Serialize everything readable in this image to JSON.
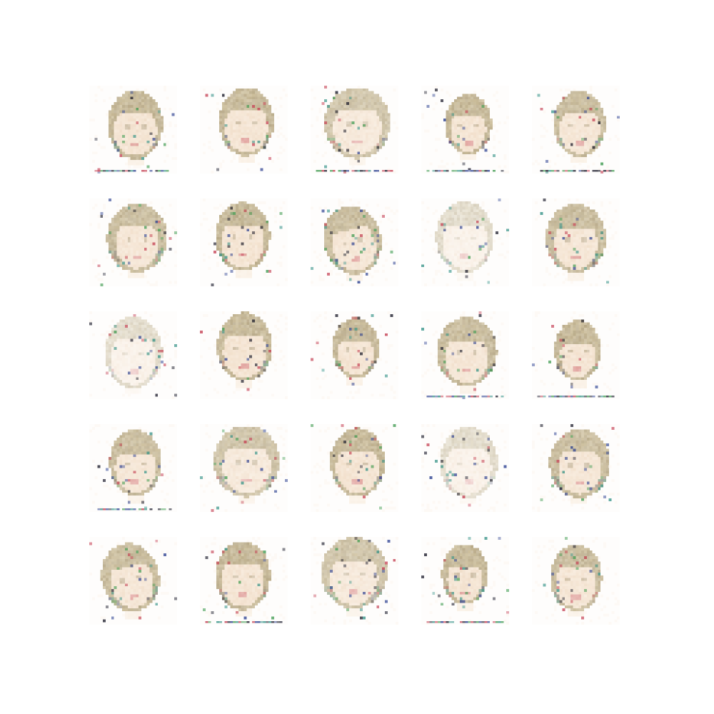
{
  "figure": {
    "description_type": "generated-sample-grid",
    "rows": 5,
    "cols": 5,
    "tile_count": 25,
    "palette": {
      "background": "#ffffff",
      "skin": "#f6e7d6",
      "skin_shadow": "#ecd5bd",
      "hair": "#cdbf9c",
      "hair_dark": "#a99a7a",
      "noise_teal": "#2f8f83",
      "noise_blue": "#2b3f8f",
      "noise_red": "#c2374b",
      "noise_dark": "#1b1b2a",
      "noise_green": "#3f9a4f"
    },
    "tiles": [
      {
        "variant": "short-bob",
        "caption_strip": true
      },
      {
        "variant": "short-bob",
        "caption_strip": false
      },
      {
        "variant": "wide-hair",
        "caption_strip": true
      },
      {
        "variant": "small-face",
        "caption_strip": true
      },
      {
        "variant": "bun",
        "caption_strip": true
      },
      {
        "variant": "long-hair",
        "caption_strip": false
      },
      {
        "variant": "short-bob",
        "caption_strip": false
      },
      {
        "variant": "tilted",
        "caption_strip": false
      },
      {
        "variant": "faint",
        "caption_strip": false
      },
      {
        "variant": "long-hair",
        "caption_strip": false
      },
      {
        "variant": "faint",
        "caption_strip": false
      },
      {
        "variant": "short-bob",
        "caption_strip": false
      },
      {
        "variant": "small-face",
        "caption_strip": false
      },
      {
        "variant": "long-hair",
        "caption_strip": true
      },
      {
        "variant": "small-face",
        "caption_strip": true
      },
      {
        "variant": "bun",
        "caption_strip": true
      },
      {
        "variant": "wide-hair",
        "caption_strip": false
      },
      {
        "variant": "short-bob",
        "caption_strip": false
      },
      {
        "variant": "faint",
        "caption_strip": false
      },
      {
        "variant": "long-hair",
        "caption_strip": false
      },
      {
        "variant": "tilted",
        "caption_strip": false
      },
      {
        "variant": "short-bob",
        "caption_strip": true
      },
      {
        "variant": "wide-hair",
        "caption_strip": false
      },
      {
        "variant": "small-face",
        "caption_strip": true
      },
      {
        "variant": "bun",
        "caption_strip": false
      }
    ]
  }
}
